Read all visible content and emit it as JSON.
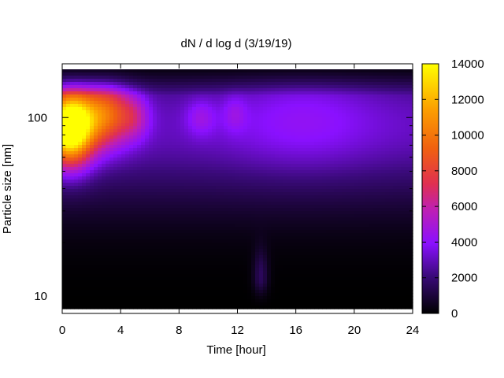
{
  "chart_data": {
    "type": "heatmap",
    "title": "dN / d log d (3/19/19)",
    "xlabel": "Time [hour]",
    "ylabel": "Particle size [nm]",
    "xlim": [
      0,
      24
    ],
    "x_ticks": [
      0,
      4,
      8,
      12,
      16,
      20,
      24
    ],
    "y_scale": "log",
    "ylim": [
      8,
      200
    ],
    "y_ticks": [
      10,
      100
    ],
    "colorbar": {
      "range": [
        0,
        14000
      ],
      "ticks": [
        0,
        2000,
        4000,
        6000,
        8000,
        10000,
        12000,
        14000
      ],
      "palette": "black-purple-red-yellow"
    },
    "grid": false,
    "blobs": [
      {
        "t": 0.5,
        "d": 88,
        "peak": 14000,
        "st": 1.6,
        "sd": 0.2
      },
      {
        "t": 3.0,
        "d": 105,
        "peak": 6500,
        "st": 1.8,
        "sd": 0.18
      },
      {
        "t": 5.0,
        "d": 100,
        "peak": 2000,
        "st": 1.0,
        "sd": 0.12
      },
      {
        "t": 9.5,
        "d": 100,
        "peak": 1500,
        "st": 1.0,
        "sd": 0.1
      },
      {
        "t": 11.8,
        "d": 105,
        "peak": 1200,
        "st": 0.8,
        "sd": 0.1
      },
      {
        "t": 13.6,
        "d": 13,
        "peak": 1500,
        "st": 0.5,
        "sd": 0.15
      }
    ]
  }
}
